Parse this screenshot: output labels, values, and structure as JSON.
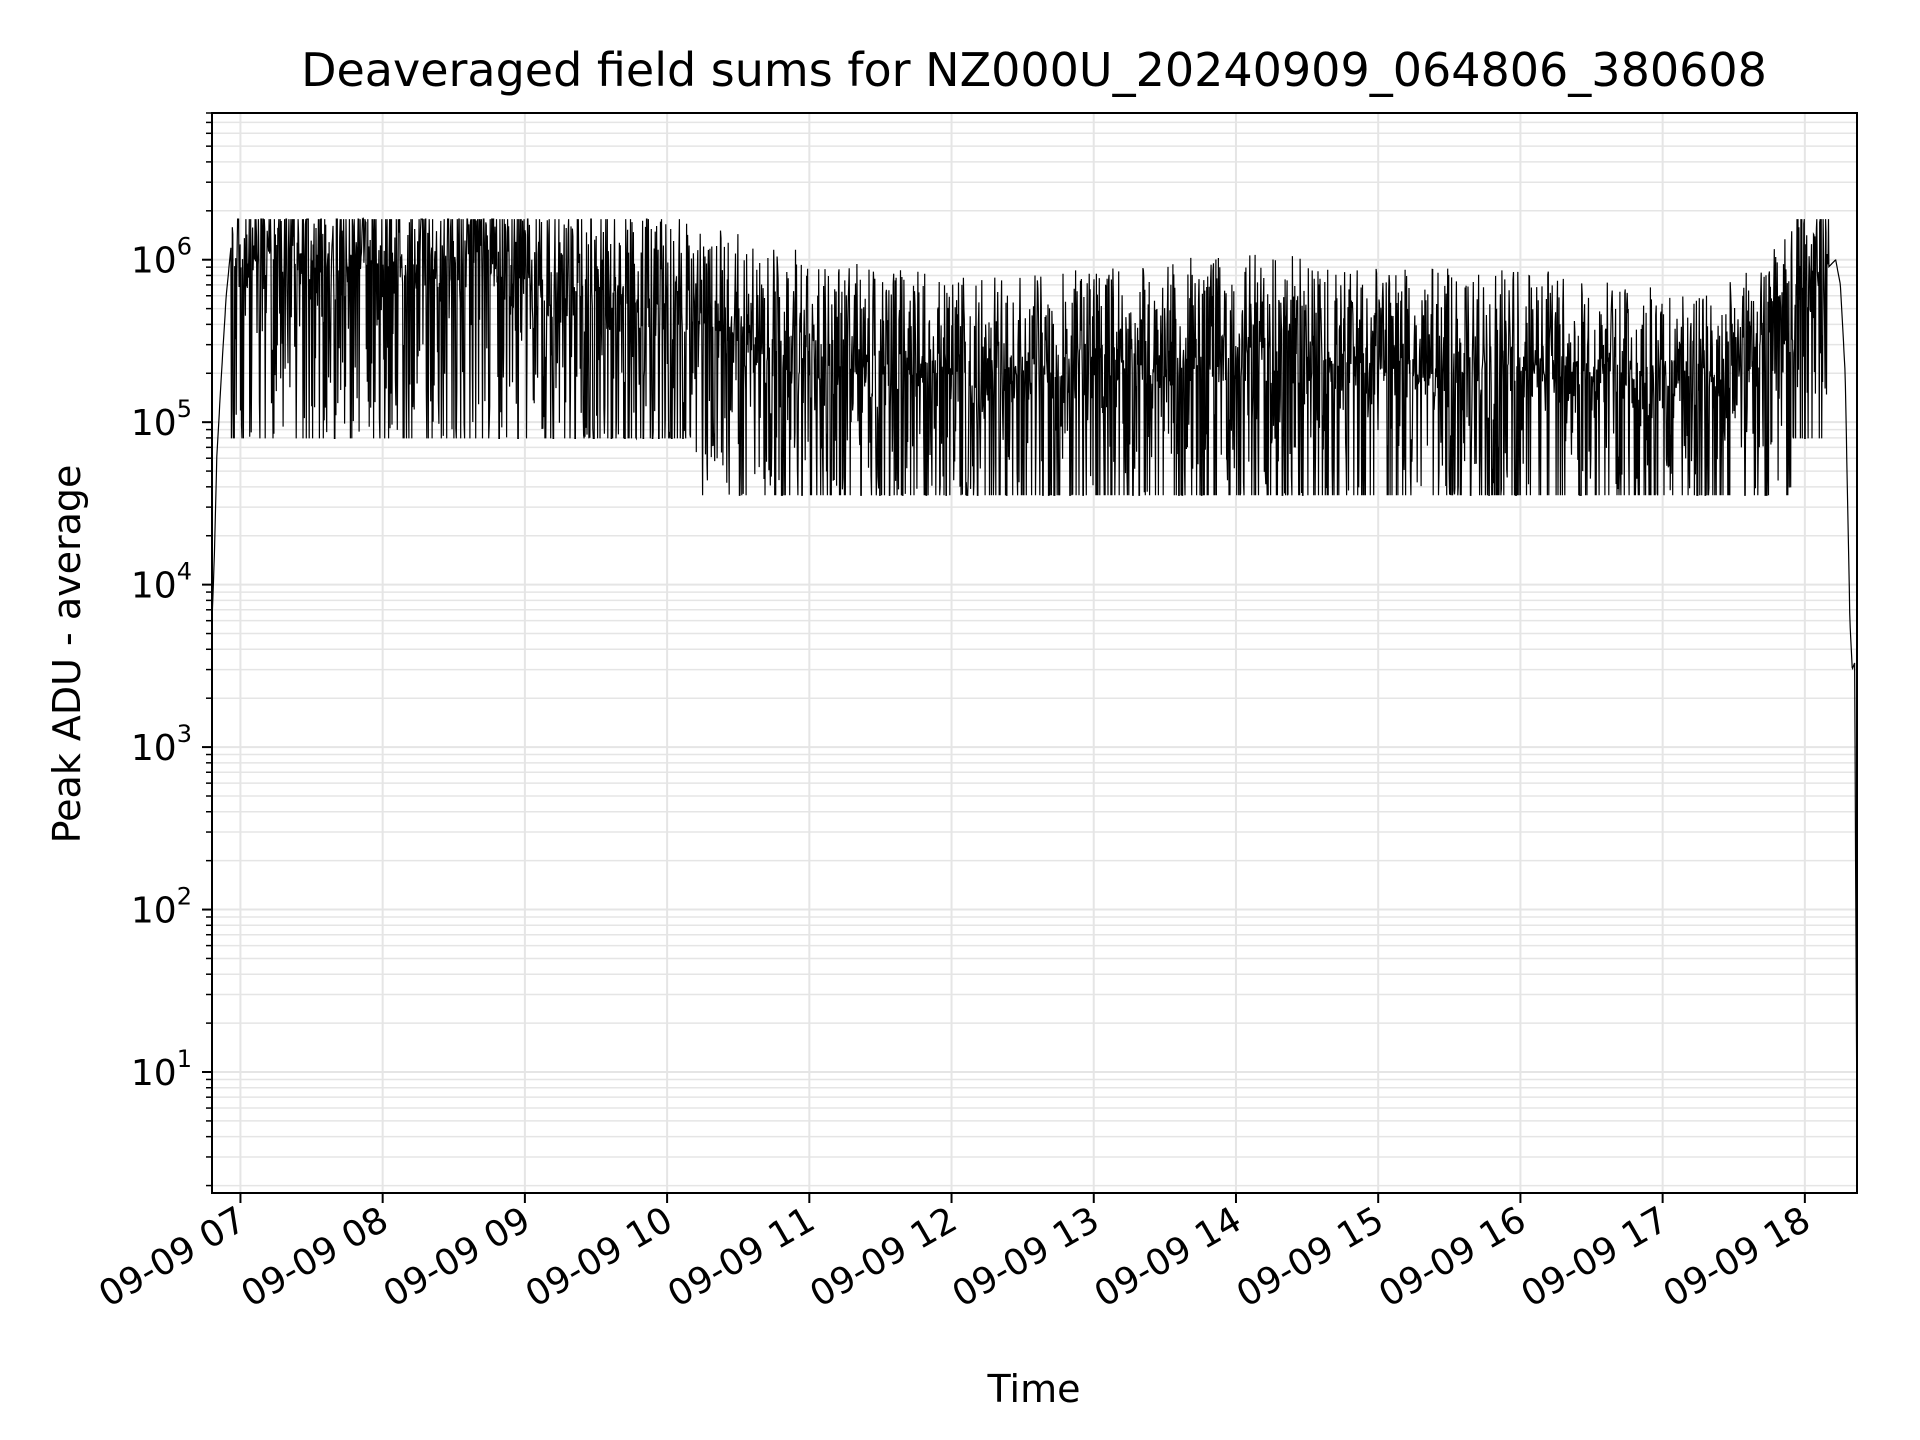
{
  "chart_data": {
    "type": "line",
    "title": "Deaveraged field sums for NZ000U_20240909_064806_380608",
    "xlabel": "Time",
    "ylabel": "Peak ADU - average",
    "y_scale": "log",
    "x_range": [
      "2024-09-09 06:48",
      "2024-09-09 18:22"
    ],
    "y_range": [
      1.8,
      8000000
    ],
    "grid": true,
    "line_color": "#000000",
    "grid_color": "#e5e5e5",
    "x_tick_labels": [
      "09-09 07",
      "09-09 08",
      "09-09 09",
      "09-09 10",
      "09-09 11",
      "09-09 12",
      "09-09 13",
      "09-09 14",
      "09-09 15",
      "09-09 16",
      "09-09 17",
      "09-09 18"
    ],
    "y_ticks": [
      {
        "value": 10,
        "base": "10",
        "exp": "1"
      },
      {
        "value": 100,
        "base": "10",
        "exp": "2"
      },
      {
        "value": 1000,
        "base": "10",
        "exp": "3"
      },
      {
        "value": 10000,
        "base": "10",
        "exp": "4"
      },
      {
        "value": 100000,
        "base": "10",
        "exp": "5"
      },
      {
        "value": 1000000,
        "base": "10",
        "exp": "6"
      }
    ],
    "series": [
      {
        "x": [
          "2024-09-09 06:48",
          "2024-09-09 06:49",
          "2024-09-09 06:50",
          "2024-09-09 06:52",
          "2024-09-09 06:54",
          "2024-09-09 06:56",
          "2024-09-09 06:58",
          "2024-09-09 07:00",
          "2024-09-09 07:03",
          "2024-09-09 07:06",
          "2024-09-09 07:10",
          "2024-09-09 07:15",
          "2024-09-09 07:20",
          "2024-09-09 07:25",
          "2024-09-09 07:30",
          "2024-09-09 07:40",
          "2024-09-09 07:50",
          "2024-09-09 08:00",
          "2024-09-09 08:10",
          "2024-09-09 08:20",
          "2024-09-09 08:30",
          "2024-09-09 08:40",
          "2024-09-09 08:50",
          "2024-09-09 09:00",
          "2024-09-09 09:15",
          "2024-09-09 09:30",
          "2024-09-09 09:45",
          "2024-09-09 10:00",
          "2024-09-09 10:20",
          "2024-09-09 10:40",
          "2024-09-09 11:00",
          "2024-09-09 11:30",
          "2024-09-09 12:00",
          "2024-09-09 12:30",
          "2024-09-09 13:00",
          "2024-09-09 13:30",
          "2024-09-09 14:00",
          "2024-09-09 14:30",
          "2024-09-09 15:00",
          "2024-09-09 15:30",
          "2024-09-09 16:00",
          "2024-09-09 16:30",
          "2024-09-09 17:00",
          "2024-09-09 17:20",
          "2024-09-09 17:40",
          "2024-09-09 17:55",
          "2024-09-09 18:05",
          "2024-09-09 18:10",
          "2024-09-09 18:13",
          "2024-09-09 18:15",
          "2024-09-09 18:17",
          "2024-09-09 18:19",
          "2024-09-09 18:20",
          "2024-09-09 18:21",
          "2024-09-09 18:22"
        ],
        "y": [
          6000,
          15000,
          60000,
          200000,
          600000,
          1200000,
          800000,
          900000,
          700000,
          1000000,
          800000,
          900000,
          850000,
          900000,
          800000,
          800000,
          900000,
          800000,
          850000,
          850000,
          900000,
          1000000,
          900000,
          700000,
          600000,
          500000,
          500000,
          450000,
          350000,
          300000,
          250000,
          200000,
          180000,
          180000,
          200000,
          220000,
          250000,
          240000,
          200000,
          200000,
          200000,
          180000,
          150000,
          150000,
          200000,
          400000,
          700000,
          900000,
          1000000,
          700000,
          200000,
          6000,
          3000,
          3300,
          3.8
        ]
      }
    ]
  }
}
